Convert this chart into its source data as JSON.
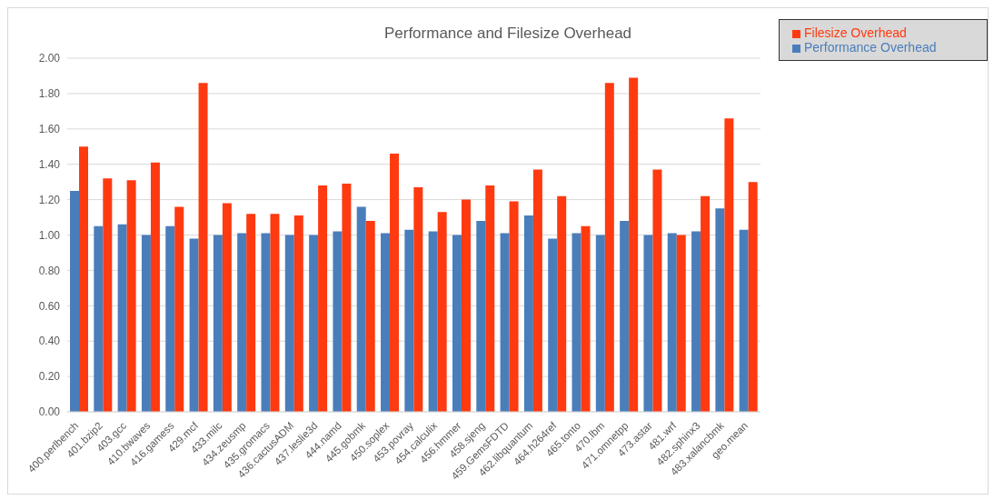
{
  "chart_data": {
    "type": "bar",
    "title": "Performance and Filesize Overhead",
    "categories": [
      "400.perlbench",
      "401.bzip2",
      "403.gcc",
      "410.bwaves",
      "416.gamess",
      "429.mcf",
      "433.milc",
      "434.zeusmp",
      "435.gromacs",
      "436.cactusADM",
      "437.leslie3d",
      "444.namd",
      "445.gobmk",
      "450.soplex",
      "453.povray",
      "454.calculix",
      "456.hmmer",
      "458.sjeng",
      "459.GemsFDTD",
      "462.libquantum",
      "464.h264ref",
      "465.tonto",
      "470.lbm",
      "471.omnetpp",
      "473.astar",
      "481.wrf",
      "482.sphinx3",
      "483.xalancbmk",
      "geo.mean"
    ],
    "series": [
      {
        "name": "Performance Overhead",
        "color": "#4a7ebb",
        "values": [
          1.25,
          1.05,
          1.06,
          1.0,
          1.05,
          0.98,
          1.0,
          1.01,
          1.01,
          1.0,
          1.0,
          1.02,
          1.16,
          1.01,
          1.03,
          1.02,
          1.0,
          1.08,
          1.01,
          1.11,
          0.98,
          1.01,
          1.0,
          1.08,
          1.0,
          1.01,
          1.02,
          1.15,
          1.03
        ]
      },
      {
        "name": "Filesize Overhead",
        "color": "#ff3a10",
        "values": [
          1.5,
          1.32,
          1.31,
          1.41,
          1.16,
          1.86,
          1.18,
          1.12,
          1.12,
          1.11,
          1.28,
          1.29,
          1.08,
          1.46,
          1.27,
          1.13,
          1.2,
          1.28,
          1.19,
          1.37,
          1.22,
          1.05,
          1.86,
          1.89,
          1.37,
          1.0,
          1.22,
          1.66,
          1.3
        ]
      }
    ],
    "ylim": [
      0,
      2
    ],
    "yticks": [
      {
        "value": 0,
        "label": "0.00"
      },
      {
        "value": 0.2,
        "label": "0.20"
      },
      {
        "value": 0.4,
        "label": "0.40"
      },
      {
        "value": 0.6,
        "label": "0.60"
      },
      {
        "value": 0.8,
        "label": "0.80"
      },
      {
        "value": 1,
        "label": "1.00"
      },
      {
        "value": 1.2,
        "label": "1.20"
      },
      {
        "value": 1.4,
        "label": "1.40"
      },
      {
        "value": 1.6,
        "label": "1.60"
      },
      {
        "value": 1.8,
        "label": "1.80"
      },
      {
        "value": 2,
        "label": "2.00"
      }
    ],
    "grid": "y",
    "legend": "top right"
  }
}
